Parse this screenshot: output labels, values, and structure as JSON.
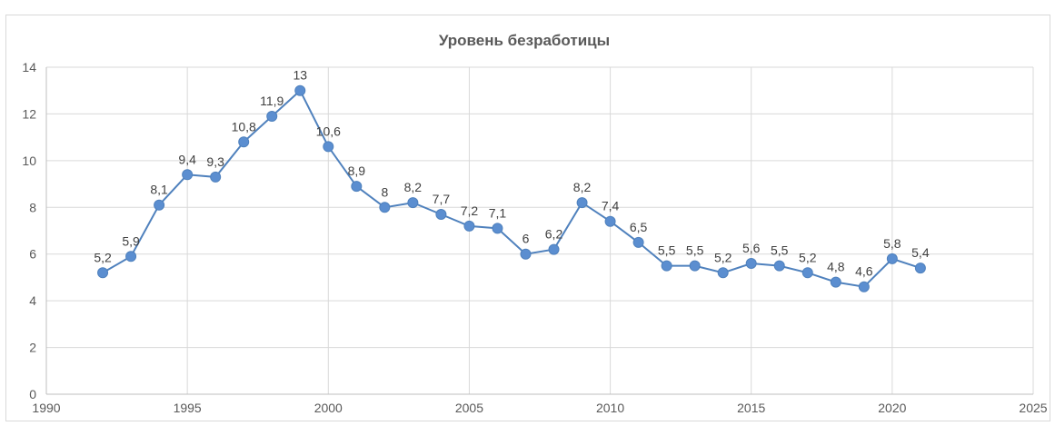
{
  "chart_data": {
    "type": "scatter",
    "title": "Уровень безработицы",
    "xlabel": "",
    "ylabel": "",
    "xlim": [
      1990,
      2025
    ],
    "ylim": [
      0,
      14
    ],
    "x_ticks": [
      1990,
      1995,
      2000,
      2005,
      2010,
      2015,
      2020,
      2025
    ],
    "y_ticks": [
      0,
      2,
      4,
      6,
      8,
      10,
      12,
      14
    ],
    "grid": true,
    "legend": "none",
    "lines_connected": true,
    "series_color": "#4f81bd",
    "marker_color": "#5b8ed0",
    "series": [
      {
        "x": [
          1992,
          1993,
          1994,
          1995,
          1996,
          1997,
          1998,
          1999,
          2000,
          2001,
          2002,
          2003,
          2004,
          2005,
          2006,
          2007,
          2008,
          2009,
          2010,
          2011,
          2012,
          2013,
          2014,
          2015,
          2016,
          2017,
          2018,
          2019,
          2020,
          2021
        ],
        "y": [
          5.2,
          5.9,
          8.1,
          9.4,
          9.3,
          10.8,
          11.9,
          13,
          10.6,
          8.9,
          8,
          8.2,
          7.7,
          7.2,
          7.1,
          6,
          6.2,
          8.2,
          7.4,
          6.5,
          5.5,
          5.5,
          5.2,
          5.6,
          5.5,
          5.2,
          4.8,
          4.6,
          5.8,
          5.4
        ],
        "labels": [
          "5,2",
          "5,9",
          "8,1",
          "9,4",
          "9,3",
          "10,8",
          "11,9",
          "13",
          "10,6",
          "8,9",
          "8",
          "8,2",
          "7,7",
          "7,2",
          "7,1",
          "6",
          "6,2",
          "8,2",
          "7,4",
          "6,5",
          "5,5",
          "5,5",
          "5,2",
          "5,6",
          "5,5",
          "5,2",
          "4,8",
          "4,6",
          "5,8",
          "5,4"
        ]
      }
    ]
  }
}
